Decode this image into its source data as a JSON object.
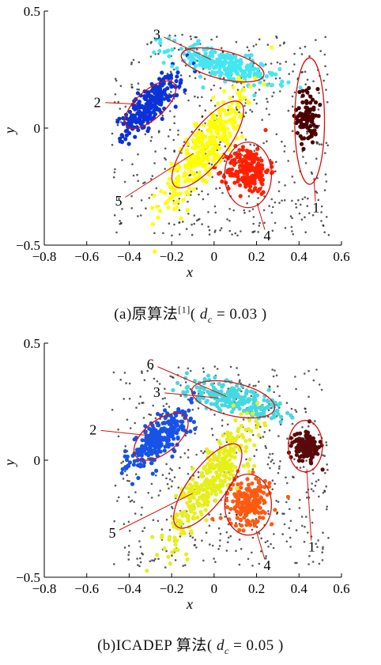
{
  "chart_data": [
    {
      "type": "scatter",
      "panel": "a",
      "xlabel": "x",
      "ylabel": "y",
      "xlim": [
        -0.8,
        0.6
      ],
      "ylim": [
        -0.5,
        0.5
      ],
      "xticks": [
        "−0.8",
        "−0.6",
        "−0.4",
        "−0.2",
        "0",
        "0.2",
        "0.4",
        "0.6"
      ],
      "yticks": [
        "0.5",
        "0",
        "−0.5"
      ],
      "ytick_values": [
        0.5,
        0,
        -0.5
      ],
      "caption": {
        "prefix": "(a)原算法",
        "ref": "[1]",
        "open": "( ",
        "var": "d",
        "sub": "c",
        "value": "= 0.03 )"
      },
      "clusters": [
        {
          "label": "1",
          "color": "#4a0000",
          "cx": 0.45,
          "cy": 0.03,
          "rx": 0.07,
          "ry": 0.27,
          "angle": 0,
          "pt": {
            "x": 0.44,
            "y": 0.05,
            "sx": 0.025,
            "sy": 0.06,
            "n": 95
          },
          "label_pos": {
            "x": 0.48,
            "y": -0.34
          }
        },
        {
          "label": "2",
          "color": "#0a32d8",
          "cx": -0.3,
          "cy": 0.1,
          "rx": 0.15,
          "ry": 0.06,
          "angle": 42,
          "pt": {
            "x": -0.3,
            "y": 0.1,
            "sx": 0.09,
            "sy": 0.03,
            "n": 260
          },
          "label_pos": {
            "x": -0.55,
            "y": 0.11
          }
        },
        {
          "label": "3",
          "color": "#44e6f0",
          "cx": 0.04,
          "cy": 0.27,
          "rx": 0.2,
          "ry": 0.06,
          "angle": -14,
          "pt": {
            "x": 0.04,
            "y": 0.27,
            "sx": 0.13,
            "sy": 0.03,
            "n": 240
          },
          "label_pos": {
            "x": -0.27,
            "y": 0.4
          }
        },
        {
          "label": "4",
          "color": "#ff2000",
          "cx": 0.16,
          "cy": -0.2,
          "rx": 0.11,
          "ry": 0.14,
          "angle": 0,
          "pt": {
            "x": 0.16,
            "y": -0.18,
            "sx": 0.05,
            "sy": 0.05,
            "n": 200
          },
          "label_pos": {
            "x": 0.25,
            "y": -0.46
          }
        },
        {
          "label": "5",
          "color": "#ffff00",
          "cx": -0.03,
          "cy": -0.07,
          "rx": 0.25,
          "ry": 0.08,
          "angle": 52,
          "pt": {
            "x": -0.03,
            "y": -0.07,
            "sx": 0.16,
            "sy": 0.04,
            "n": 340
          },
          "label_pos": {
            "x": -0.45,
            "y": -0.31
          }
        }
      ]
    },
    {
      "type": "scatter",
      "panel": "b",
      "xlabel": "x",
      "ylabel": "y",
      "xlim": [
        -0.8,
        0.6
      ],
      "ylim": [
        -0.5,
        0.5
      ],
      "xticks": [
        "−0.8",
        "−0.6",
        "−0.4",
        "−0.2",
        "0",
        "0.2",
        "0.4",
        "0.6"
      ],
      "yticks": [
        "0.5",
        "0",
        "−0.5"
      ],
      "ytick_values": [
        0.5,
        0,
        -0.5
      ],
      "caption": {
        "prefix": "(b)ICADEP 算法",
        "ref": "",
        "open": "( ",
        "var": "d",
        "sub": "c",
        "value": "= 0.05 )"
      },
      "clusters": [
        {
          "label": "1",
          "color": "#5a0a0a",
          "cx": 0.43,
          "cy": 0.06,
          "rx": 0.08,
          "ry": 0.11,
          "angle": 0,
          "pt": {
            "x": 0.43,
            "y": 0.06,
            "sx": 0.03,
            "sy": 0.03,
            "n": 120
          },
          "label_pos": {
            "x": 0.46,
            "y": -0.37
          }
        },
        {
          "label": "2",
          "color": "#1852e6",
          "cx": -0.25,
          "cy": 0.1,
          "rx": 0.15,
          "ry": 0.07,
          "angle": 38,
          "pt": {
            "x": -0.25,
            "y": 0.1,
            "sx": 0.09,
            "sy": 0.035,
            "n": 280
          },
          "label_pos": {
            "x": -0.57,
            "y": 0.13
          }
        },
        {
          "label": "3",
          "color": "#44d8e0",
          "cx": 0.09,
          "cy": 0.26,
          "rx": 0.2,
          "ry": 0.07,
          "angle": -13,
          "pt": {
            "x": 0.09,
            "y": 0.26,
            "sx": 0.12,
            "sy": 0.03,
            "n": 230
          },
          "label_pos": {
            "x": -0.27,
            "y": 0.29
          }
        },
        {
          "label": "4",
          "color": "#ff5a12",
          "cx": 0.16,
          "cy": -0.19,
          "rx": 0.11,
          "ry": 0.13,
          "angle": 0,
          "pt": {
            "x": 0.16,
            "y": -0.18,
            "sx": 0.05,
            "sy": 0.05,
            "n": 190
          },
          "label_pos": {
            "x": 0.25,
            "y": -0.45
          }
        },
        {
          "label": "5",
          "color": "#e6ef1a",
          "cx": -0.03,
          "cy": -0.11,
          "rx": 0.24,
          "ry": 0.08,
          "angle": 53,
          "pt": {
            "x": -0.03,
            "y": -0.1,
            "sx": 0.16,
            "sy": 0.04,
            "n": 340
          },
          "label_pos": {
            "x": -0.48,
            "y": -0.31
          }
        },
        {
          "label": "6",
          "color": "#44d8e0",
          "cx": 0.09,
          "cy": 0.26,
          "rx": 0.0,
          "ry": 0.0,
          "angle": 0,
          "pt": {
            "x": 0.0,
            "y": 0.0,
            "sx": 0.0,
            "sy": 0.0,
            "n": 0
          },
          "label_pos": {
            "x": -0.3,
            "y": 0.41
          }
        }
      ],
      "noise_color": "#222222"
    }
  ],
  "styles": {
    "ellipse_color": "#d41010",
    "axis_color": "#000000",
    "noise_color": "#222222"
  }
}
